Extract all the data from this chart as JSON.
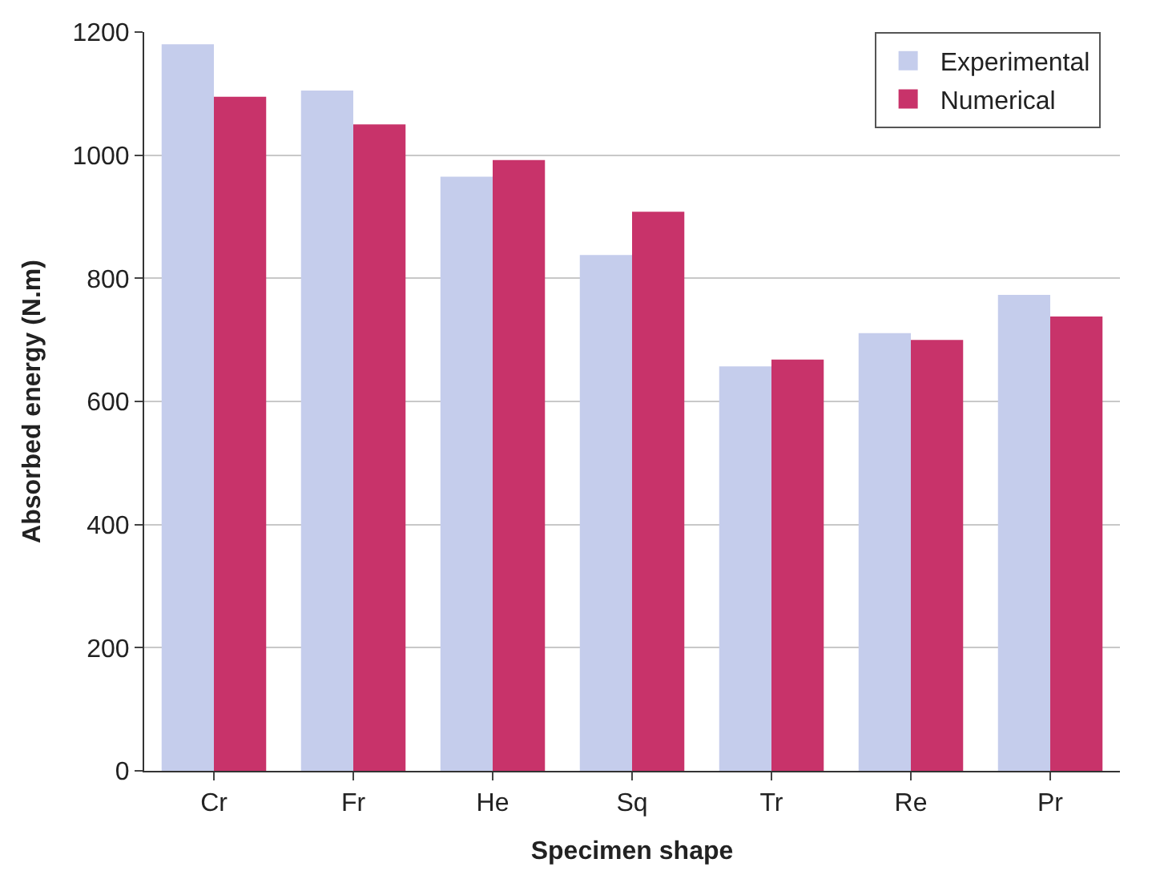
{
  "chart_data": {
    "type": "bar",
    "xlabel": "Specimen shape",
    "ylabel": "Absorbed energy (N.m)",
    "categories": [
      "Cr",
      "Fr",
      "He",
      "Sq",
      "Tr",
      "Re",
      "Pr"
    ],
    "series": [
      {
        "name": "Experimental",
        "color": "#c5cdec",
        "values": [
          1180,
          1105,
          965,
          838,
          657,
          711,
          773
        ]
      },
      {
        "name": "Numerical",
        "color": "#c8336a",
        "values": [
          1095,
          1050,
          992,
          908,
          668,
          700,
          738
        ]
      }
    ],
    "ylim": [
      0,
      1200
    ],
    "yticks": [
      0,
      200,
      400,
      600,
      800,
      1000,
      1200
    ],
    "grid": "y",
    "legend": "top right"
  }
}
